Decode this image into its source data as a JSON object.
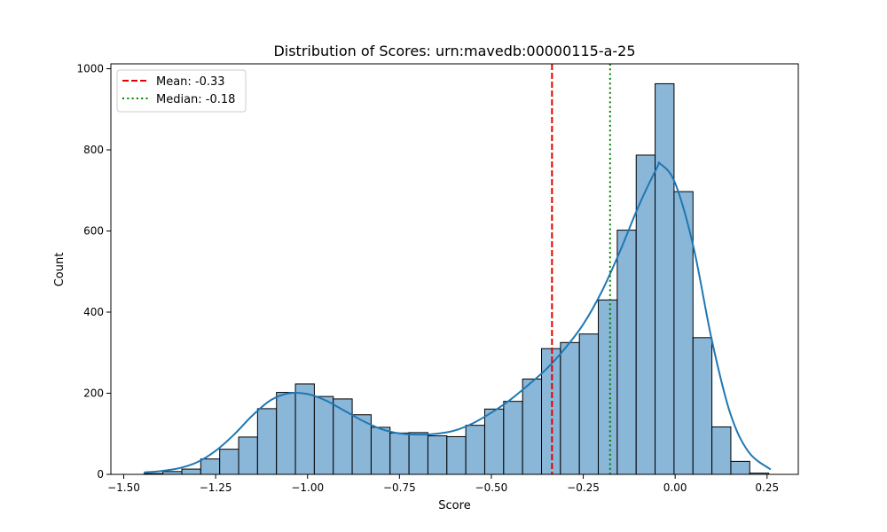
{
  "chart_data": {
    "type": "bar",
    "title": "Distribution of Scores: urn:mavedb:00000115-a-25",
    "xlabel": "Score",
    "ylabel": "Count",
    "xlim": [
      -1.535,
      0.335
    ],
    "ylim": [
      0,
      1012
    ],
    "xticks": [
      -1.5,
      -1.25,
      -1.0,
      -0.75,
      -0.5,
      -0.25,
      0.0,
      0.25
    ],
    "xtick_labels": [
      "−1.50",
      "−1.25",
      "−1.00",
      "−0.75",
      "−0.50",
      "−0.25",
      "0.00",
      "0.25"
    ],
    "yticks": [
      0,
      200,
      400,
      600,
      800,
      1000
    ],
    "ytick_labels": [
      "0",
      "200",
      "400",
      "600",
      "800",
      "1000"
    ],
    "grid": false,
    "legend_position": "top-left",
    "bins": {
      "start": -1.445,
      "width": 0.0515,
      "counts": [
        2,
        7,
        13,
        38,
        62,
        92,
        162,
        202,
        223,
        192,
        186,
        147,
        116,
        102,
        103,
        95,
        93,
        121,
        161,
        180,
        235,
        310,
        325,
        346,
        430,
        602,
        787,
        963,
        697,
        337,
        117,
        32,
        3
      ]
    },
    "kde": {
      "x": [
        -1.445,
        -1.4,
        -1.35,
        -1.3,
        -1.25,
        -1.2,
        -1.15,
        -1.1,
        -1.05,
        -1.0,
        -0.95,
        -0.9,
        -0.85,
        -0.8,
        -0.75,
        -0.7,
        -0.65,
        -0.6,
        -0.55,
        -0.5,
        -0.45,
        -0.4,
        -0.35,
        -0.3,
        -0.25,
        -0.2,
        -0.15,
        -0.1,
        -0.05,
        -0.04,
        0.0,
        0.05,
        0.1,
        0.15,
        0.2,
        0.26
      ],
      "y": [
        5,
        8,
        15,
        30,
        58,
        98,
        145,
        183,
        200,
        198,
        182,
        157,
        132,
        112,
        101,
        98,
        100,
        108,
        126,
        152,
        183,
        220,
        260,
        310,
        370,
        450,
        550,
        660,
        755,
        765,
        718,
        560,
        330,
        150,
        55,
        12
      ]
    },
    "reference_lines": [
      {
        "name": "Mean: -0.33",
        "x": -0.335,
        "color": "#e50000",
        "style": "dashed"
      },
      {
        "name": "Median: -0.18",
        "x": -0.177,
        "color": "#007f00",
        "style": "dotted"
      }
    ],
    "colors": {
      "bar_fill": "#8ab6d8",
      "bar_edge": "#000000",
      "kde": "#1f77b4"
    }
  }
}
